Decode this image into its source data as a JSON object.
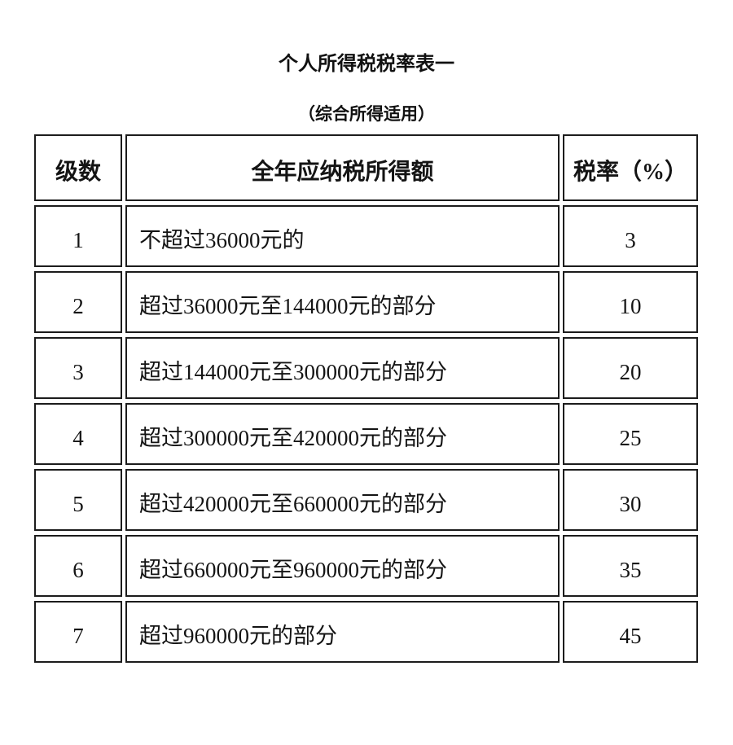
{
  "page": {
    "title": "个人所得税税率表一",
    "subtitle": "（综合所得适用）"
  },
  "table": {
    "headers": {
      "level": "级数",
      "income": "全年应纳税所得额",
      "rate": "税率（%）"
    },
    "rows": [
      {
        "level": "1",
        "income": "不超过36000元的",
        "rate": "3"
      },
      {
        "level": "2",
        "income": "超过36000元至144000元的部分",
        "rate": "10"
      },
      {
        "level": "3",
        "income": "超过144000元至300000元的部分",
        "rate": "20"
      },
      {
        "level": "4",
        "income": "超过300000元至420000元的部分",
        "rate": "25"
      },
      {
        "level": "5",
        "income": "超过420000元至660000元的部分",
        "rate": "30"
      },
      {
        "level": "6",
        "income": "超过660000元至960000元的部分",
        "rate": "35"
      },
      {
        "level": "7",
        "income": "超过960000元的部分",
        "rate": "45"
      }
    ]
  },
  "colors": {
    "border": "#1c1c1c",
    "text": "#141414",
    "background": "#ffffff"
  }
}
